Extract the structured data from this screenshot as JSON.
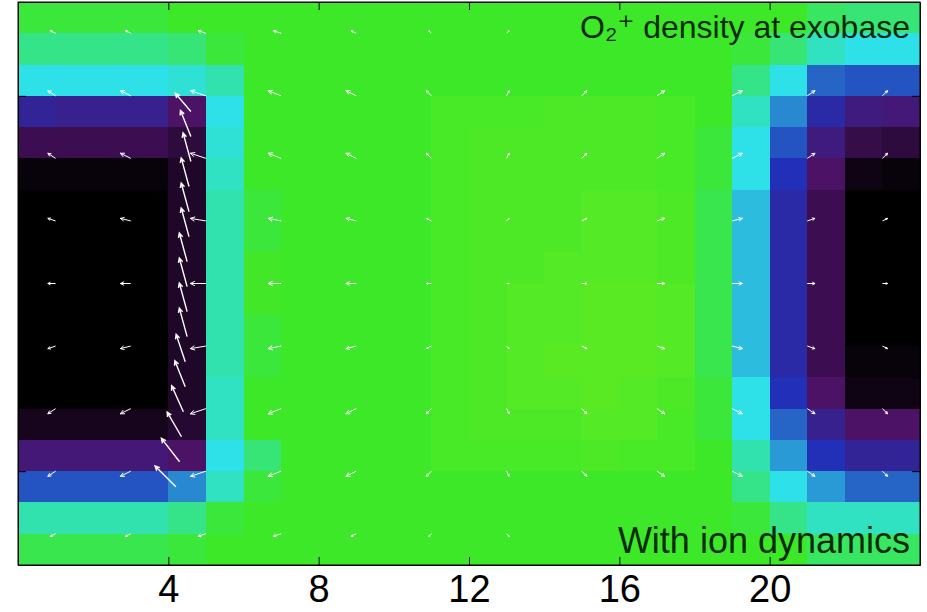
{
  "chart_data": {
    "type": "heatmap",
    "title": "O₂⁺ density at exobase",
    "annotations": [
      "With ion dynamics"
    ],
    "xlim": [
      0,
      24
    ],
    "xticks": [
      4,
      8,
      12,
      16,
      20
    ],
    "ylim": [
      -90,
      90
    ],
    "yticks": [
      -60,
      -30,
      0,
      30,
      60
    ],
    "tick_labels": "x",
    "zlim": [
      0,
      5
    ],
    "x": [
      0.5,
      1.5,
      2.5,
      3.5,
      4.5,
      5.5,
      6.5,
      7.5,
      8.5,
      9.5,
      10.5,
      11.5,
      12.5,
      13.5,
      14.5,
      15.5,
      16.5,
      17.5,
      18.5,
      19.5,
      20.5,
      21.5,
      22.5,
      23.5
    ],
    "y": [
      85,
      75,
      65,
      55,
      45,
      35,
      25,
      15,
      5,
      -5,
      -15,
      -25,
      -35,
      -45,
      -55,
      -65,
      -75,
      -85
    ],
    "z": [
      [
        3.9,
        3.9,
        3.9,
        3.9,
        4,
        4,
        4,
        4,
        4,
        4,
        4,
        4,
        4,
        4,
        4,
        4,
        4,
        4,
        4,
        4,
        4,
        3.7,
        3.6,
        3.6
      ],
      [
        3.5,
        3.5,
        3.5,
        3.5,
        3.6,
        3.9,
        4,
        4,
        4,
        4,
        4,
        4,
        4,
        4,
        4,
        4,
        4,
        4,
        4,
        3.9,
        3.6,
        3.2,
        3.0,
        3.0
      ],
      [
        3.0,
        3.0,
        3.0,
        3.0,
        3.1,
        3.3,
        4,
        4,
        4,
        4,
        4,
        4,
        4,
        4,
        4,
        4,
        4,
        4,
        4,
        3.5,
        3.0,
        2.3,
        2.2,
        2.2
      ],
      [
        1.6,
        1.5,
        1.5,
        1.5,
        1.0,
        3.0,
        4,
        4,
        4,
        4,
        4,
        4.1,
        4.1,
        4.1,
        4.15,
        4.15,
        4.15,
        4.1,
        4,
        3.2,
        2.5,
        1.8,
        1.3,
        1.2
      ],
      [
        0.8,
        0.8,
        0.8,
        0.8,
        0.6,
        3.1,
        4,
        4,
        4,
        4,
        4,
        4.1,
        4.15,
        4.15,
        4.15,
        4.15,
        4.15,
        4.1,
        3.9,
        3.0,
        2.2,
        1.3,
        0.7,
        0.6
      ],
      [
        0.1,
        0.1,
        0.1,
        0.1,
        0.4,
        3.2,
        4,
        4,
        4,
        4,
        4,
        4.1,
        4.15,
        4.15,
        4.15,
        4.15,
        4.15,
        4.1,
        3.9,
        3.0,
        2.0,
        1.0,
        0.2,
        0.1
      ],
      [
        0,
        0,
        0,
        0,
        0.4,
        3.3,
        3.9,
        4,
        4,
        4,
        4,
        4.1,
        4.15,
        4.15,
        4.15,
        4.2,
        4.2,
        4.15,
        3.8,
        2.8,
        1.8,
        0.8,
        0,
        0
      ],
      [
        0,
        0,
        0,
        0,
        0.4,
        3.3,
        3.9,
        4,
        4,
        4,
        4,
        4.1,
        4.15,
        4.15,
        4.15,
        4.2,
        4.2,
        4.15,
        3.8,
        2.8,
        1.8,
        0.8,
        0,
        0
      ],
      [
        0,
        0,
        0,
        0,
        0.4,
        3.3,
        4.05,
        4,
        4,
        4,
        4,
        4.1,
        4.15,
        4.15,
        4.2,
        4.2,
        4.2,
        4.15,
        3.8,
        2.8,
        1.8,
        0.8,
        0,
        0
      ],
      [
        0,
        0,
        0,
        0,
        0.4,
        3.3,
        4.05,
        4,
        4,
        4,
        4,
        4.1,
        4.15,
        4.2,
        4.2,
        4.25,
        4.25,
        4.2,
        3.8,
        2.8,
        1.8,
        0.8,
        0,
        0
      ],
      [
        0,
        0,
        0,
        0,
        0.4,
        3.3,
        3.9,
        4,
        4,
        4,
        4,
        4.1,
        4.15,
        4.2,
        4.2,
        4.25,
        4.25,
        4.2,
        3.8,
        2.8,
        1.8,
        0.8,
        0,
        0
      ],
      [
        0,
        0,
        0,
        0,
        0.4,
        3.3,
        3.9,
        4,
        4,
        4,
        4,
        4.1,
        4.15,
        4.2,
        4.25,
        4.25,
        4.25,
        4.2,
        3.8,
        2.8,
        1.8,
        0.8,
        0.1,
        0.1
      ],
      [
        0,
        0,
        0,
        0,
        0.4,
        3.2,
        4,
        4,
        4,
        4,
        4,
        4.1,
        4.15,
        4.2,
        4.2,
        4.25,
        4.2,
        4.15,
        3.9,
        3.0,
        2.0,
        1.0,
        0.2,
        0.2
      ],
      [
        0.3,
        0.3,
        0.3,
        0.3,
        0.5,
        3.2,
        4,
        4,
        4,
        4,
        4,
        4.1,
        4.15,
        4.15,
        4.15,
        4.2,
        4.2,
        4.1,
        3.9,
        3.0,
        2.3,
        1.5,
        1.0,
        1.0
      ],
      [
        1.2,
        1.2,
        1.2,
        1.2,
        1.0,
        3.0,
        3.6,
        4,
        4,
        4,
        4,
        4.1,
        4.1,
        4.1,
        4.1,
        4.15,
        4.1,
        4.1,
        4,
        3.3,
        2.6,
        2.0,
        1.6,
        1.6
      ],
      [
        2.2,
        2.2,
        2.2,
        2.2,
        2.5,
        3.2,
        3.9,
        4,
        4,
        4,
        4,
        4,
        4,
        4,
        4,
        4,
        4,
        4,
        4,
        3.5,
        3.0,
        2.6,
        2.3,
        2.3
      ],
      [
        3.3,
        3.3,
        3.3,
        3.3,
        3.5,
        3.9,
        4,
        4,
        4,
        4,
        4,
        4,
        4,
        4,
        4,
        4,
        4,
        4,
        4,
        3.9,
        3.5,
        3.2,
        3.2,
        3.2
      ],
      [
        3.8,
        3.8,
        3.8,
        3.8,
        3.9,
        4,
        4,
        4,
        4,
        4,
        4,
        4,
        4,
        4,
        4,
        4,
        4,
        4,
        4,
        4,
        4,
        3.7,
        3.7,
        3.7
      ]
    ],
    "vector_grid": {
      "x": [
        1,
        3,
        5,
        7,
        9,
        11,
        13,
        15,
        17,
        19,
        21,
        23
      ],
      "y": [
        80,
        60,
        40,
        20,
        0,
        -20,
        -40,
        -60,
        -80
      ],
      "u": [
        [
          -0.2,
          -0.2,
          -0.3,
          -0.3,
          -0.2,
          -0.1,
          0.1,
          null,
          null,
          null,
          null,
          null
        ],
        [
          -0.3,
          -0.4,
          -0.6,
          -0.5,
          -0.4,
          -0.2,
          0.1,
          0.2,
          0.3,
          0.4,
          0.3,
          0.2
        ],
        [
          -0.3,
          -0.4,
          -0.6,
          -0.5,
          -0.4,
          -0.2,
          0.1,
          0.2,
          0.3,
          0.4,
          0.3,
          0.2
        ],
        [
          -0.3,
          -0.4,
          -0.6,
          -0.5,
          -0.4,
          -0.2,
          0.1,
          0.2,
          0.3,
          0.4,
          0.3,
          0.2
        ],
        [
          -0.3,
          -0.4,
          -0.6,
          -0.5,
          -0.4,
          -0.2,
          0.1,
          0.2,
          0.3,
          0.4,
          0.3,
          0.2
        ],
        [
          -0.3,
          -0.4,
          -0.6,
          -0.5,
          -0.4,
          -0.2,
          0.1,
          0.2,
          0.3,
          0.4,
          0.3,
          0.2
        ],
        [
          -0.3,
          -0.4,
          -0.6,
          -0.5,
          -0.4,
          -0.2,
          0.1,
          0.2,
          0.3,
          0.4,
          0.3,
          0.2
        ],
        [
          -0.3,
          -0.4,
          -0.6,
          -0.5,
          -0.4,
          -0.2,
          0.1,
          0.2,
          0.3,
          0.4,
          0.3,
          0.2
        ],
        [
          -0.2,
          -0.2,
          -0.3,
          -0.3,
          -0.2,
          -0.1,
          0.1,
          null,
          null,
          null,
          null,
          null
        ]
      ],
      "v": [
        [
          0.1,
          0.1,
          0.1,
          0.1,
          0.1,
          0.1,
          0.1,
          null,
          null,
          null,
          null,
          null
        ],
        [
          0.2,
          0.2,
          0.2,
          0.2,
          0.2,
          0.2,
          0.2,
          0.2,
          0.2,
          0.2,
          0.2,
          0.2
        ],
        [
          0.2,
          0.2,
          0.2,
          0.2,
          0.2,
          0.2,
          0.2,
          0.2,
          0.2,
          0.2,
          0.2,
          0.2
        ],
        [
          0.1,
          0.1,
          0.1,
          0.1,
          0.1,
          0.1,
          0.1,
          0.1,
          0.1,
          0.1,
          0.1,
          0.1
        ],
        [
          0,
          0,
          0,
          0,
          0,
          0,
          0,
          0,
          0,
          0,
          0,
          0
        ],
        [
          -0.1,
          -0.1,
          -0.1,
          -0.1,
          -0.1,
          -0.1,
          -0.1,
          -0.1,
          -0.1,
          -0.1,
          -0.1,
          -0.1
        ],
        [
          -0.2,
          -0.2,
          -0.2,
          -0.2,
          -0.2,
          -0.2,
          -0.2,
          -0.2,
          -0.2,
          -0.2,
          -0.2,
          -0.2
        ],
        [
          -0.2,
          -0.2,
          -0.2,
          -0.2,
          -0.2,
          -0.2,
          -0.2,
          -0.2,
          -0.2,
          -0.2,
          -0.2,
          -0.2
        ],
        [
          -0.1,
          -0.1,
          -0.1,
          -0.1,
          -0.1,
          -0.1,
          -0.1,
          null,
          null,
          null,
          null,
          null
        ]
      ]
    },
    "vectors": {
      "x": [
        4.6,
        4.6,
        4.6,
        4.55,
        4.55,
        4.55,
        4.5,
        4.5,
        4.5,
        4.5,
        4.45,
        4.45,
        4.4,
        4.35,
        4.3,
        4.2
      ],
      "y": [
        55,
        47,
        39,
        31,
        23,
        15,
        7,
        -1,
        -9,
        -17,
        -25,
        -33,
        -41,
        -49,
        -57,
        -65
      ],
      "u": [
        -0.6,
        -0.4,
        -0.3,
        -0.3,
        -0.3,
        -0.3,
        -0.3,
        -0.3,
        -0.3,
        -0.3,
        -0.35,
        -0.4,
        -0.45,
        -0.55,
        -0.7,
        -0.8
      ],
      "v": [
        0.7,
        1.0,
        1.1,
        1.1,
        1.1,
        1.1,
        1.1,
        1.1,
        1.1,
        1.1,
        1.05,
        1.0,
        1.0,
        0.95,
        0.9,
        0.8
      ]
    }
  }
}
